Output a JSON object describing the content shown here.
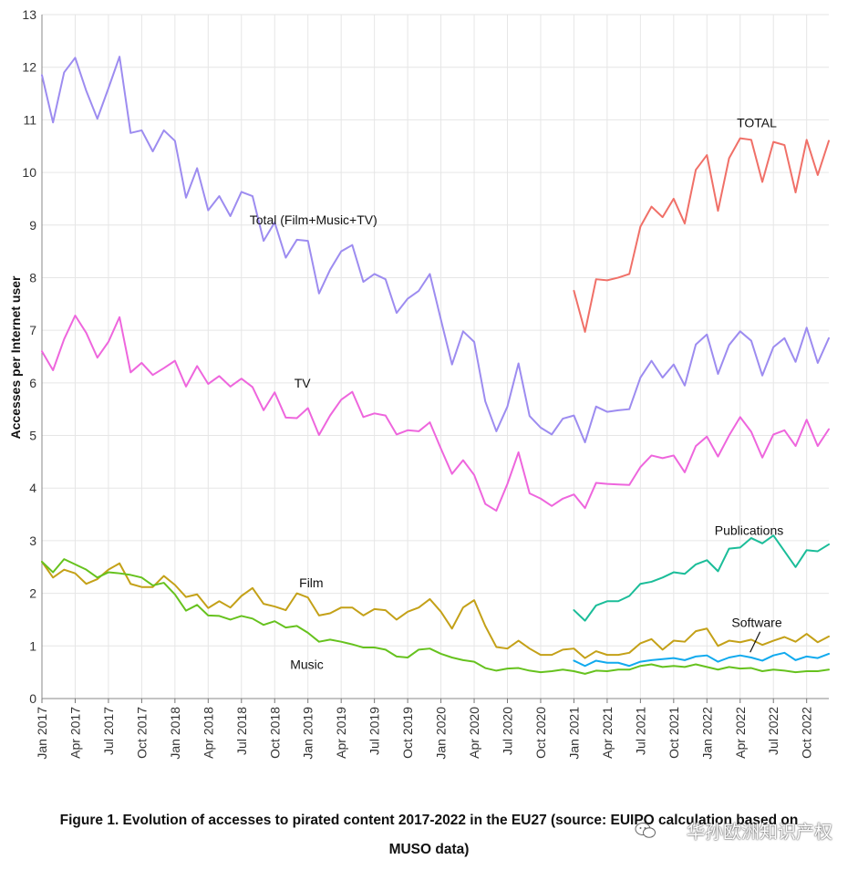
{
  "chart_data": {
    "type": "line",
    "title": "",
    "xlabel": "",
    "ylabel": "Accesses per Internet user",
    "ylim": [
      0,
      13
    ],
    "yticks": [
      0,
      1,
      2,
      3,
      4,
      5,
      6,
      7,
      8,
      9,
      10,
      11,
      12,
      13
    ],
    "x_count": 72,
    "x_ticks": [
      {
        "i": 0,
        "label": "Jan 2017"
      },
      {
        "i": 3,
        "label": "Apr 2017"
      },
      {
        "i": 6,
        "label": "Jul 2017"
      },
      {
        "i": 9,
        "label": "Oct 2017"
      },
      {
        "i": 12,
        "label": "Jan 2018"
      },
      {
        "i": 15,
        "label": "Apr 2018"
      },
      {
        "i": 18,
        "label": "Jul 2018"
      },
      {
        "i": 21,
        "label": "Oct 2018"
      },
      {
        "i": 24,
        "label": "Jan 2019"
      },
      {
        "i": 27,
        "label": "Apr 2019"
      },
      {
        "i": 30,
        "label": "Jul 2019"
      },
      {
        "i": 33,
        "label": "Oct 2019"
      },
      {
        "i": 36,
        "label": "Jan 2020"
      },
      {
        "i": 39,
        "label": "Apr 2020"
      },
      {
        "i": 42,
        "label": "Jul 2020"
      },
      {
        "i": 45,
        "label": "Oct 2020"
      },
      {
        "i": 48,
        "label": "Jan 2021"
      },
      {
        "i": 51,
        "label": "Apr 2021"
      },
      {
        "i": 54,
        "label": "Jul 2021"
      },
      {
        "i": 57,
        "label": "Oct 2021"
      },
      {
        "i": 60,
        "label": "Jan 2022"
      },
      {
        "i": 63,
        "label": "Apr 2022"
      },
      {
        "i": 66,
        "label": "Jul 2022"
      },
      {
        "i": 69,
        "label": "Oct 2022"
      }
    ],
    "series": [
      {
        "name": "Total (Film+Music+TV)",
        "color": "#9d8cf0",
        "start": 0,
        "values": [
          11.85,
          10.95,
          11.9,
          12.18,
          11.55,
          11.02,
          11.6,
          12.2,
          10.75,
          10.8,
          10.4,
          10.8,
          10.6,
          9.52,
          10.08,
          9.28,
          9.55,
          9.17,
          9.63,
          9.55,
          8.7,
          9.05,
          8.38,
          8.72,
          8.7,
          7.7,
          8.15,
          8.5,
          8.62,
          7.92,
          8.07,
          7.97,
          7.33,
          7.6,
          7.75,
          8.07,
          7.2,
          6.35,
          6.98,
          6.78,
          5.65,
          5.08,
          5.55,
          6.37,
          5.37,
          5.15,
          5.02,
          5.32,
          5.38,
          4.87,
          5.55,
          5.45,
          5.48,
          5.5,
          6.1,
          6.42,
          6.1,
          6.35,
          5.95,
          6.73,
          6.92,
          6.17,
          6.72,
          6.98,
          6.8,
          6.14,
          6.68,
          6.85,
          6.4,
          7.05,
          6.38,
          6.85
        ]
      },
      {
        "name": "TV",
        "color": "#ee66dd",
        "start": 0,
        "values": [
          6.6,
          6.24,
          6.83,
          7.28,
          6.95,
          6.48,
          6.78,
          7.25,
          6.2,
          6.38,
          6.15,
          6.28,
          6.42,
          5.93,
          6.32,
          5.98,
          6.13,
          5.93,
          6.08,
          5.92,
          5.48,
          5.82,
          5.34,
          5.33,
          5.52,
          5.01,
          5.38,
          5.68,
          5.83,
          5.35,
          5.42,
          5.38,
          5.02,
          5.1,
          5.08,
          5.25,
          4.75,
          4.27,
          4.53,
          4.25,
          3.7,
          3.57,
          4.08,
          4.68,
          3.9,
          3.8,
          3.66,
          3.8,
          3.88,
          3.62,
          4.1,
          4.08,
          4.07,
          4.06,
          4.4,
          4.62,
          4.57,
          4.62,
          4.3,
          4.8,
          4.98,
          4.6,
          5.0,
          5.35,
          5.07,
          4.58,
          5.02,
          5.1,
          4.8,
          5.3,
          4.8,
          5.12
        ]
      },
      {
        "name": "Film",
        "color": "#c4a118",
        "start": 0,
        "values": [
          2.6,
          2.3,
          2.45,
          2.38,
          2.18,
          2.27,
          2.45,
          2.57,
          2.18,
          2.12,
          2.12,
          2.33,
          2.16,
          1.93,
          1.98,
          1.72,
          1.85,
          1.73,
          1.95,
          2.1,
          1.8,
          1.75,
          1.68,
          2.0,
          1.92,
          1.58,
          1.62,
          1.73,
          1.73,
          1.58,
          1.7,
          1.68,
          1.5,
          1.65,
          1.73,
          1.89,
          1.65,
          1.33,
          1.73,
          1.87,
          1.38,
          0.98,
          0.95,
          1.1,
          0.95,
          0.83,
          0.83,
          0.93,
          0.95,
          0.77,
          0.9,
          0.83,
          0.83,
          0.87,
          1.05,
          1.13,
          0.93,
          1.1,
          1.08,
          1.28,
          1.33,
          1.0,
          1.1,
          1.07,
          1.12,
          1.02,
          1.1,
          1.17,
          1.08,
          1.23,
          1.07,
          1.18
        ]
      },
      {
        "name": "Music",
        "color": "#66c21e",
        "start": 0,
        "values": [
          2.6,
          2.4,
          2.65,
          2.55,
          2.45,
          2.3,
          2.4,
          2.38,
          2.35,
          2.3,
          2.15,
          2.2,
          1.98,
          1.67,
          1.78,
          1.58,
          1.57,
          1.5,
          1.57,
          1.52,
          1.4,
          1.47,
          1.35,
          1.38,
          1.25,
          1.08,
          1.12,
          1.08,
          1.03,
          0.97,
          0.97,
          0.93,
          0.8,
          0.78,
          0.93,
          0.95,
          0.85,
          0.78,
          0.73,
          0.7,
          0.58,
          0.53,
          0.57,
          0.58,
          0.53,
          0.5,
          0.52,
          0.55,
          0.52,
          0.47,
          0.53,
          0.52,
          0.55,
          0.55,
          0.62,
          0.65,
          0.6,
          0.62,
          0.6,
          0.65,
          0.6,
          0.55,
          0.6,
          0.57,
          0.58,
          0.52,
          0.55,
          0.53,
          0.5,
          0.52,
          0.52,
          0.55
        ]
      },
      {
        "name": "TOTAL",
        "color": "#f07068",
        "start": 48,
        "values": [
          7.75,
          6.97,
          7.97,
          7.95,
          8.0,
          8.07,
          8.97,
          9.35,
          9.15,
          9.5,
          9.03,
          10.05,
          10.33,
          9.27,
          10.27,
          10.65,
          10.62,
          9.82,
          10.58,
          10.52,
          9.62,
          10.62,
          9.95,
          10.6
        ]
      },
      {
        "name": "Publications",
        "color": "#1bbd99",
        "start": 48,
        "values": [
          1.68,
          1.48,
          1.77,
          1.85,
          1.85,
          1.95,
          2.18,
          2.22,
          2.3,
          2.4,
          2.37,
          2.55,
          2.63,
          2.42,
          2.85,
          2.87,
          3.05,
          2.95,
          3.1,
          2.8,
          2.5,
          2.82,
          2.8,
          2.93
        ]
      },
      {
        "name": "Software",
        "color": "#11aaee",
        "start": 48,
        "values": [
          0.72,
          0.62,
          0.72,
          0.68,
          0.68,
          0.62,
          0.7,
          0.73,
          0.75,
          0.77,
          0.73,
          0.8,
          0.82,
          0.7,
          0.78,
          0.82,
          0.78,
          0.72,
          0.82,
          0.87,
          0.73,
          0.8,
          0.77,
          0.85
        ]
      }
    ],
    "annotations": [
      {
        "text": "Total (Film+Music+TV)",
        "x_index": 24.5,
        "y": 9.1
      },
      {
        "text": "TV",
        "x_index": 23.5,
        "y": 6.0
      },
      {
        "text": "TOTAL",
        "x_index": 64.5,
        "y": 10.95
      },
      {
        "text": "Publications",
        "x_index": 63.8,
        "y": 3.2
      },
      {
        "text": "Film",
        "x_index": 24.3,
        "y": 2.2
      },
      {
        "text": "Music",
        "x_index": 23.9,
        "y": 0.65
      },
      {
        "text": "Software",
        "x_index": 64.5,
        "y": 1.45
      }
    ],
    "software_pointer": {
      "from_x_index": 64.8,
      "from_y": 1.27,
      "to_x_index": 63.9,
      "to_y": 0.88
    }
  },
  "caption": {
    "line1": "Figure 1. Evolution of accesses to pirated content 2017-2022 in the EU27 (source: EUIPO calculation based on",
    "line2": "MUSO data)"
  },
  "watermark": {
    "text": "华孙欧洲知识产权",
    "icon": "wechat-icon"
  }
}
